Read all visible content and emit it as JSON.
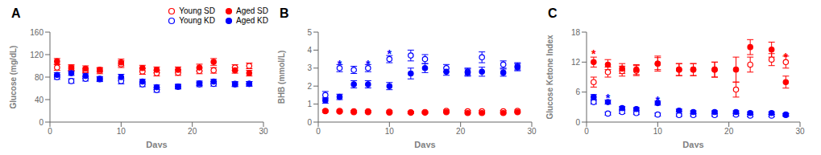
{
  "chart_data": [
    {
      "type": "scatter",
      "title": "A",
      "xlabel": "Days",
      "ylabel": "Glucose (mg/dL)",
      "xlim": [
        0,
        30
      ],
      "xticks": [
        0,
        10,
        20,
        30
      ],
      "ylim": [
        0,
        160
      ],
      "yticks": [
        0,
        40,
        80,
        120,
        160
      ],
      "grid": false,
      "legend": "upper right",
      "series": [
        {
          "name": "Young SD",
          "color": "#FF0000",
          "marker": "open circle",
          "x": [
            1,
            3,
            5,
            7,
            10,
            13,
            15,
            18,
            21,
            23,
            26,
            28
          ],
          "values": [
            97,
            95,
            92,
            91,
            103,
            90,
            87,
            88,
            91,
            92,
            97,
            100
          ],
          "errors": [
            5,
            5,
            4,
            5,
            6,
            5,
            5,
            5,
            5,
            5,
            5,
            5
          ]
        },
        {
          "name": "Aged SD",
          "color": "#FF0000",
          "marker": "filled circle",
          "x": [
            1,
            3,
            5,
            7,
            10,
            13,
            15,
            18,
            21,
            23,
            26,
            28
          ],
          "values": [
            108,
            97,
            95,
            93,
            106,
            96,
            93,
            93,
            97,
            107,
            92,
            87
          ],
          "errors": [
            5,
            5,
            5,
            4,
            6,
            5,
            5,
            5,
            6,
            6,
            5,
            5
          ]
        },
        {
          "name": "Young KD",
          "color": "#0000FF",
          "marker": "open circle",
          "x": [
            1,
            3,
            5,
            7,
            10,
            13,
            15,
            18,
            21,
            23,
            26,
            28
          ],
          "values": [
            80,
            73,
            77,
            76,
            73,
            67,
            57,
            63,
            67,
            68,
            68,
            68
          ],
          "errors": [
            4,
            4,
            4,
            4,
            5,
            4,
            4,
            4,
            4,
            4,
            4,
            4
          ]
        },
        {
          "name": "Aged KD",
          "color": "#0000FF",
          "marker": "filled circle",
          "x": [
            1,
            3,
            5,
            7,
            10,
            13,
            15,
            18,
            21,
            23,
            26,
            28
          ],
          "values": [
            84,
            87,
            82,
            77,
            80,
            72,
            62,
            63,
            69,
            72,
            67,
            68
          ],
          "errors": [
            4,
            4,
            4,
            4,
            5,
            4,
            4,
            4,
            4,
            4,
            4,
            4
          ]
        }
      ],
      "annotations": []
    },
    {
      "type": "scatter",
      "title": "B",
      "xlabel": "Days",
      "ylabel": "BHB (mmol/L)",
      "xlim": [
        0,
        30
      ],
      "xticks": [
        0,
        10,
        20,
        30
      ],
      "ylim": [
        0,
        5
      ],
      "yticks": [
        0,
        1,
        2,
        3,
        4,
        5
      ],
      "grid": false,
      "series": [
        {
          "name": "Young SD",
          "color": "#FF0000",
          "marker": "open circle",
          "x": [
            1,
            3,
            5,
            7,
            10,
            13,
            15,
            18,
            21,
            23,
            26,
            28
          ],
          "values": [
            0.62,
            0.62,
            0.6,
            0.6,
            0.58,
            0.55,
            0.56,
            0.62,
            0.6,
            0.6,
            0.6,
            0.62
          ],
          "errors": [
            0.05,
            0.05,
            0.05,
            0.05,
            0.05,
            0.05,
            0.05,
            0.05,
            0.05,
            0.05,
            0.05,
            0.05
          ]
        },
        {
          "name": "Aged SD",
          "color": "#FF0000",
          "marker": "filled circle",
          "x": [
            1,
            3,
            5,
            7,
            10,
            13,
            15,
            18,
            21,
            23,
            26,
            28
          ],
          "values": [
            0.6,
            0.58,
            0.55,
            0.55,
            0.53,
            0.52,
            0.52,
            0.55,
            0.5,
            0.5,
            0.5,
            0.55
          ],
          "errors": [
            0.05,
            0.04,
            0.04,
            0.04,
            0.04,
            0.04,
            0.04,
            0.04,
            0.04,
            0.04,
            0.04,
            0.04
          ]
        },
        {
          "name": "Young KD",
          "color": "#0000FF",
          "marker": "open circle",
          "x": [
            1,
            3,
            5,
            7,
            10,
            13,
            15,
            18,
            21,
            23,
            26,
            28
          ],
          "values": [
            1.5,
            3.0,
            2.9,
            3.0,
            3.5,
            3.7,
            3.5,
            3.0,
            2.8,
            3.6,
            3.2,
            3.1
          ],
          "errors": [
            0.2,
            0.2,
            0.2,
            0.2,
            0.2,
            0.3,
            0.25,
            0.2,
            0.2,
            0.3,
            0.2,
            0.2
          ]
        },
        {
          "name": "Aged KD",
          "color": "#0000FF",
          "marker": "filled circle",
          "x": [
            1,
            3,
            5,
            7,
            10,
            13,
            15,
            18,
            21,
            23,
            26,
            28
          ],
          "values": [
            1.2,
            1.4,
            2.1,
            2.1,
            2.0,
            2.7,
            3.0,
            2.8,
            2.75,
            2.8,
            2.75,
            3.05
          ],
          "errors": [
            0.15,
            0.15,
            0.2,
            0.2,
            0.2,
            0.3,
            0.25,
            0.2,
            0.2,
            0.25,
            0.2,
            0.2
          ]
        }
      ],
      "annotations": [
        {
          "text": "*",
          "x": 3,
          "y": 3.25,
          "color": "#0000FF"
        },
        {
          "text": "*",
          "x": 7,
          "y": 3.25,
          "color": "#0000FF"
        },
        {
          "text": "*",
          "x": 10,
          "y": 3.85,
          "color": "#0000FF"
        }
      ]
    },
    {
      "type": "scatter",
      "title": "C",
      "xlabel": "Days",
      "ylabel": "Glucose Ketone Index",
      "xlim": [
        0,
        30
      ],
      "xticks": [
        0,
        10,
        20,
        30
      ],
      "ylim": [
        0,
        18
      ],
      "yticks": [
        0,
        6,
        12,
        18
      ],
      "grid": false,
      "series": [
        {
          "name": "Young SD",
          "color": "#FF0000",
          "marker": "open circle",
          "x": [
            1,
            3,
            5,
            7,
            10,
            13,
            15,
            18,
            21,
            23,
            26,
            28
          ],
          "values": [
            8.0,
            10.0,
            10.2,
            10.3,
            11.7,
            10.5,
            10.5,
            10.5,
            6.5,
            11.5,
            12.5,
            12.0
          ],
          "errors": [
            1.0,
            1.0,
            1.0,
            1.0,
            1.5,
            1.2,
            1.2,
            1.5,
            1.5,
            1.5,
            1.2,
            1.2
          ]
        },
        {
          "name": "Aged SD",
          "color": "#FF0000",
          "marker": "filled circle",
          "x": [
            1,
            3,
            5,
            7,
            10,
            13,
            15,
            18,
            21,
            23,
            26,
            28
          ],
          "values": [
            12.0,
            11.5,
            10.7,
            10.5,
            11.7,
            10.5,
            10.5,
            10.5,
            10.5,
            15.0,
            14.5,
            8.0
          ],
          "errors": [
            1.0,
            1.0,
            1.0,
            1.0,
            1.2,
            1.2,
            1.2,
            1.5,
            2.5,
            1.5,
            1.5,
            1.2
          ]
        },
        {
          "name": "Young KD",
          "color": "#0000FF",
          "marker": "open circle",
          "x": [
            1,
            3,
            5,
            7,
            10,
            13,
            15,
            18,
            21,
            23,
            26,
            28
          ],
          "values": [
            4.0,
            1.7,
            2.0,
            1.8,
            1.5,
            1.4,
            1.4,
            1.4,
            1.5,
            1.3,
            1.3,
            1.4
          ],
          "errors": [
            0.4,
            0.3,
            0.3,
            0.3,
            0.3,
            0.25,
            0.25,
            0.25,
            0.25,
            0.25,
            0.25,
            0.25
          ]
        },
        {
          "name": "Aged KD",
          "color": "#0000FF",
          "marker": "filled circle",
          "x": [
            1,
            3,
            5,
            7,
            10,
            13,
            15,
            18,
            21,
            23,
            26,
            28
          ],
          "values": [
            5.0,
            4.0,
            2.8,
            2.6,
            3.8,
            2.3,
            2.0,
            2.0,
            2.0,
            1.8,
            1.8,
            1.5
          ],
          "errors": [
            0.5,
            0.4,
            0.3,
            0.3,
            0.4,
            0.3,
            0.25,
            0.25,
            0.25,
            0.25,
            0.25,
            0.25
          ]
        }
      ],
      "annotations": [
        {
          "text": "*",
          "x": 1,
          "y": 13.8,
          "color": "#FF0000"
        },
        {
          "text": "*",
          "x": 28,
          "y": 13.2,
          "color": "#FF0000"
        },
        {
          "text": "*",
          "x": 3,
          "y": 5.0,
          "color": "#0000FF"
        },
        {
          "text": "*",
          "x": 10,
          "y": 4.5,
          "color": "#0000FF"
        }
      ]
    }
  ]
}
